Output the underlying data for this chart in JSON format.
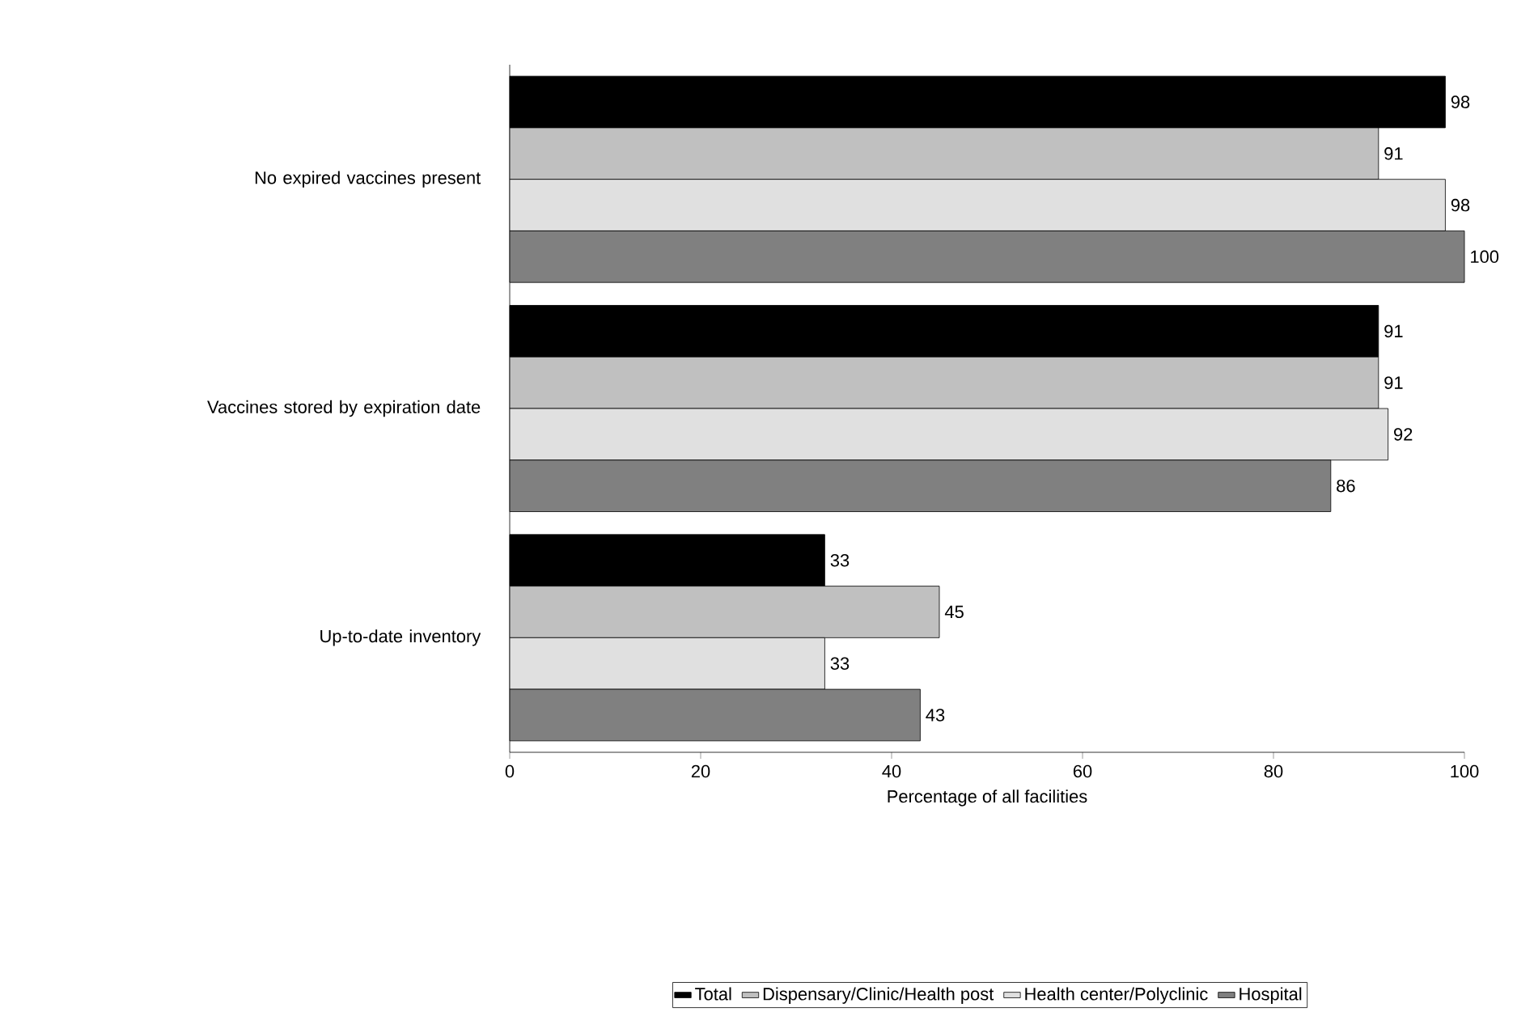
{
  "chart_data": {
    "type": "bar",
    "orientation": "horizontal",
    "xlabel": "Percentage of all facilities",
    "categories": [
      "No expired vaccines present",
      "Vaccines stored by expiration date",
      "Up-to-date inventory"
    ],
    "series": [
      {
        "name": "Total",
        "color": "#000000",
        "values": [
          98,
          91,
          33
        ]
      },
      {
        "name": "Dispensary/Clinic/Health post",
        "color": "#c0c0c0",
        "values": [
          91,
          91,
          45
        ]
      },
      {
        "name": "Health center/Polyclinic",
        "color": "#e0e0e0",
        "values": [
          98,
          92,
          33
        ]
      },
      {
        "name": "Hospital",
        "color": "#808080",
        "values": [
          100,
          86,
          43
        ]
      }
    ],
    "xlim": [
      0,
      100
    ],
    "xticks": [
      0,
      20,
      40,
      60,
      80,
      100
    ],
    "data_labels": true,
    "legend": "bottom",
    "grid": false
  }
}
